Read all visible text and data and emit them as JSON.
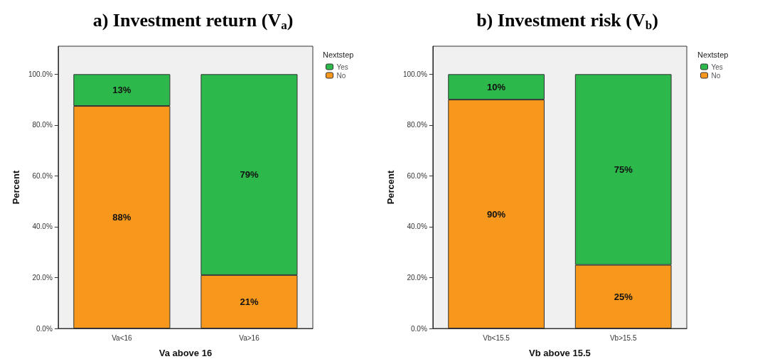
{
  "chart_data": [
    {
      "type": "bar",
      "title": "a) Investment return (V$_{a}$)",
      "xlabel": "Va above 16",
      "ylabel": "Percent",
      "legend_title": "Nextstep",
      "categories": [
        "Va<16",
        "Va>16"
      ],
      "stacked": true,
      "legend": "top right",
      "grid": false,
      "ylim": [
        0,
        111
      ],
      "yticks": [
        {
          "value": 0,
          "label": "0.0%"
        },
        {
          "value": 20,
          "label": "20.0%"
        },
        {
          "value": 40,
          "label": "40.0%"
        },
        {
          "value": 60,
          "label": "60.0%"
        },
        {
          "value": 80,
          "label": "80.0%"
        },
        {
          "value": 100,
          "label": "100.0%"
        }
      ],
      "series": [
        {
          "name": "No",
          "color": "#f7981d",
          "values": [
            87.5,
            21
          ],
          "value_labels": [
            "88%",
            "21%"
          ]
        },
        {
          "name": "Yes",
          "color": "#2db84b",
          "values": [
            12.5,
            79
          ],
          "value_labels": [
            "13%",
            "79%"
          ]
        }
      ]
    },
    {
      "type": "bar",
      "title": "b) Investment risk (V$_{b}$)",
      "xlabel": "Vb above 15.5",
      "ylabel": "Percent",
      "legend_title": "Nextstep",
      "categories": [
        "Vb<15.5",
        "Vb>15.5"
      ],
      "stacked": true,
      "legend": "top right",
      "grid": false,
      "ylim": [
        0,
        111
      ],
      "yticks": [
        {
          "value": 0,
          "label": "0.0%"
        },
        {
          "value": 20,
          "label": "20.0%"
        },
        {
          "value": 40,
          "label": "40.0%"
        },
        {
          "value": 60,
          "label": "60.0%"
        },
        {
          "value": 80,
          "label": "80.0%"
        },
        {
          "value": 100,
          "label": "100.0%"
        }
      ],
      "series": [
        {
          "name": "No",
          "color": "#f7981d",
          "values": [
            90,
            25
          ],
          "value_labels": [
            "90%",
            "25%"
          ]
        },
        {
          "name": "Yes",
          "color": "#2db84b",
          "values": [
            10,
            75
          ],
          "value_labels": [
            "10%",
            "75%"
          ]
        }
      ]
    }
  ]
}
